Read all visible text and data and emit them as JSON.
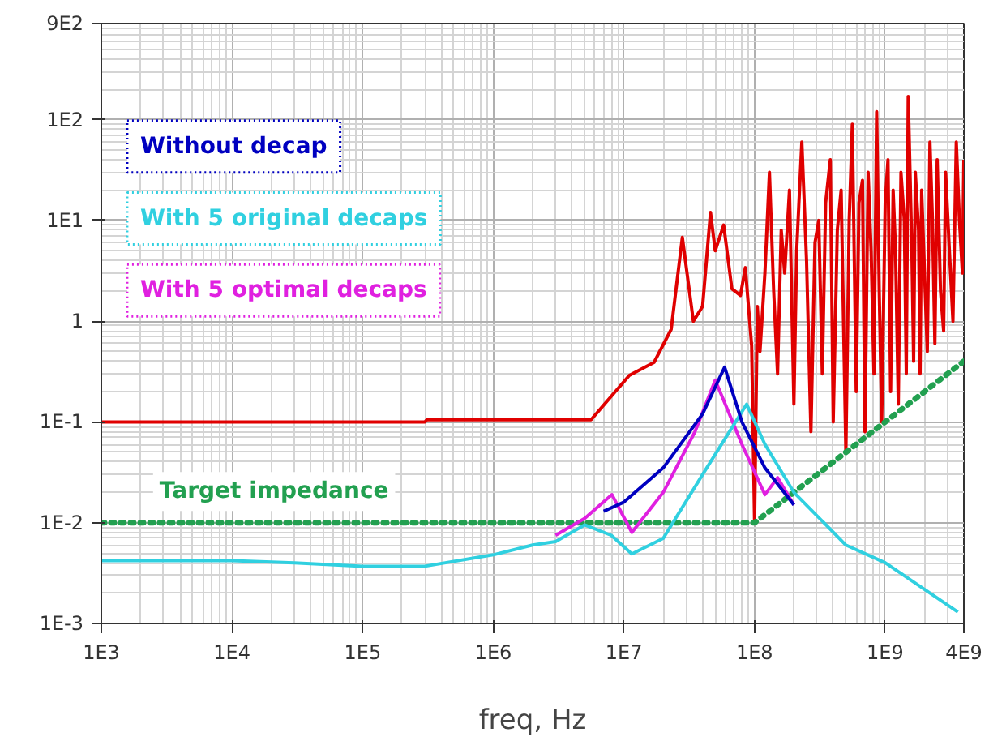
{
  "chart_data": {
    "type": "line",
    "xlabel": "freq, Hz",
    "log": "xy",
    "grid": true,
    "xlim": [
      1000,
      4000000000
    ],
    "ylim": [
      0.001,
      900
    ],
    "xticks": [
      {
        "value": 1000,
        "label": "1E3"
      },
      {
        "value": 10000,
        "label": "1E4"
      },
      {
        "value": 100000,
        "label": "1E5"
      },
      {
        "value": 1000000,
        "label": "1E6"
      },
      {
        "value": 10000000,
        "label": "1E7"
      },
      {
        "value": 100000000,
        "label": "1E8"
      },
      {
        "value": 1000000000,
        "label": "1E9"
      },
      {
        "value": 4000000000,
        "label": "4E9"
      }
    ],
    "yticks": [
      {
        "value": 0.001,
        "label": "1E-3"
      },
      {
        "value": 0.01,
        "label": "1E-2"
      },
      {
        "value": 0.1,
        "label": "1E-1"
      },
      1,
      {
        "value": 10,
        "label": "1E1"
      },
      {
        "value": 100,
        "label": "1E2"
      },
      {
        "value": 900,
        "label": "9E2"
      }
    ],
    "series": [
      {
        "color": "#e00000",
        "x": [
          1000,
          300000,
          310000,
          5600000,
          11000000,
          17000000,
          23000000,
          28000000,
          34000000,
          40000000,
          46000000,
          50000000,
          58000000,
          67000000,
          78000000,
          85000000,
          95000000,
          100000000,
          105000000,
          110000000,
          120000000,
          130000000,
          140000000,
          150000000,
          160000000,
          170000000,
          185000000,
          200000000,
          210000000,
          230000000,
          250000000,
          270000000,
          290000000,
          310000000,
          330000000,
          350000000,
          380000000,
          400000000,
          430000000,
          460000000,
          500000000,
          530000000,
          560000000,
          600000000,
          630000000,
          670000000,
          700000000,
          740000000,
          780000000,
          820000000,
          860000000,
          900000000,
          940000000,
          1000000000,
          1050000000,
          1100000000,
          1150000000,
          1200000000,
          1260000000,
          1320000000,
          1400000000,
          1450000000,
          1500000000,
          1600000000,
          1650000000,
          1700000000,
          1800000000,
          1850000000,
          1900000000,
          2000000000,
          2100000000,
          2200000000,
          2300000000,
          2400000000,
          2500000000,
          2650000000,
          2800000000,
          2900000000,
          3100000000,
          3300000000,
          3500000000,
          3700000000,
          3900000000,
          4000000000
        ],
        "values": [
          0.1,
          0.1,
          0.105,
          0.105,
          0.29,
          0.39,
          0.83,
          6.8,
          1.0,
          1.4,
          12,
          5,
          9,
          2.1,
          1.8,
          3.4,
          0.57,
          0.01,
          1.4,
          0.5,
          3,
          30,
          2,
          0.3,
          8,
          3,
          20,
          0.15,
          5,
          60,
          4,
          0.08,
          6,
          10,
          0.3,
          15,
          40,
          0.1,
          8,
          20,
          0.05,
          10,
          90,
          0.2,
          15,
          25,
          0.08,
          30,
          5,
          0.3,
          120,
          2,
          0.1,
          15,
          40,
          0.2,
          20,
          5,
          0.15,
          30,
          10,
          0.3,
          170,
          5,
          0.4,
          30,
          8,
          0.3,
          20,
          3,
          0.5,
          60,
          10,
          0.6,
          40,
          2,
          0.8,
          30,
          5,
          1,
          60,
          10,
          3,
          40
        ]
      },
      {
        "name": "Target impedance",
        "color": "#22a050",
        "line_style": "dotted",
        "x": [
          1000,
          100000000,
          4000000000
        ],
        "values": [
          0.01,
          0.01,
          0.4
        ]
      },
      {
        "name": "With 5 optimal decaps",
        "color": "#e020e0",
        "x": [
          3000000,
          5000000,
          8100000,
          11500000,
          20000000,
          35000000,
          50000000,
          80000000,
          120000000,
          150000000,
          200000000
        ],
        "values": [
          0.0075,
          0.011,
          0.019,
          0.008,
          0.02,
          0.08,
          0.26,
          0.06,
          0.019,
          0.028,
          0.015
        ]
      },
      {
        "name": "With 5 original decaps",
        "color": "#30d0e0",
        "x": [
          1000,
          10000,
          30000,
          100000,
          300000,
          1000000,
          2000000,
          3000000,
          5000000,
          8000000,
          11500000,
          20000000,
          40000000,
          87000000,
          120000000,
          200000000,
          500000000,
          1000000000,
          3600000000
        ],
        "values": [
          0.0042,
          0.0042,
          0.004,
          0.0037,
          0.0037,
          0.0048,
          0.006,
          0.0065,
          0.0095,
          0.0075,
          0.0049,
          0.007,
          0.03,
          0.15,
          0.06,
          0.02,
          0.006,
          0.004,
          0.0013
        ]
      },
      {
        "name": "Without decap",
        "color": "#0000c0",
        "x": [
          7000000,
          10000000,
          20000000,
          40000000,
          59000000,
          80000000,
          120000000,
          200000000
        ],
        "values": [
          0.013,
          0.016,
          0.035,
          0.12,
          0.35,
          0.1,
          0.035,
          0.015
        ]
      }
    ]
  }
}
